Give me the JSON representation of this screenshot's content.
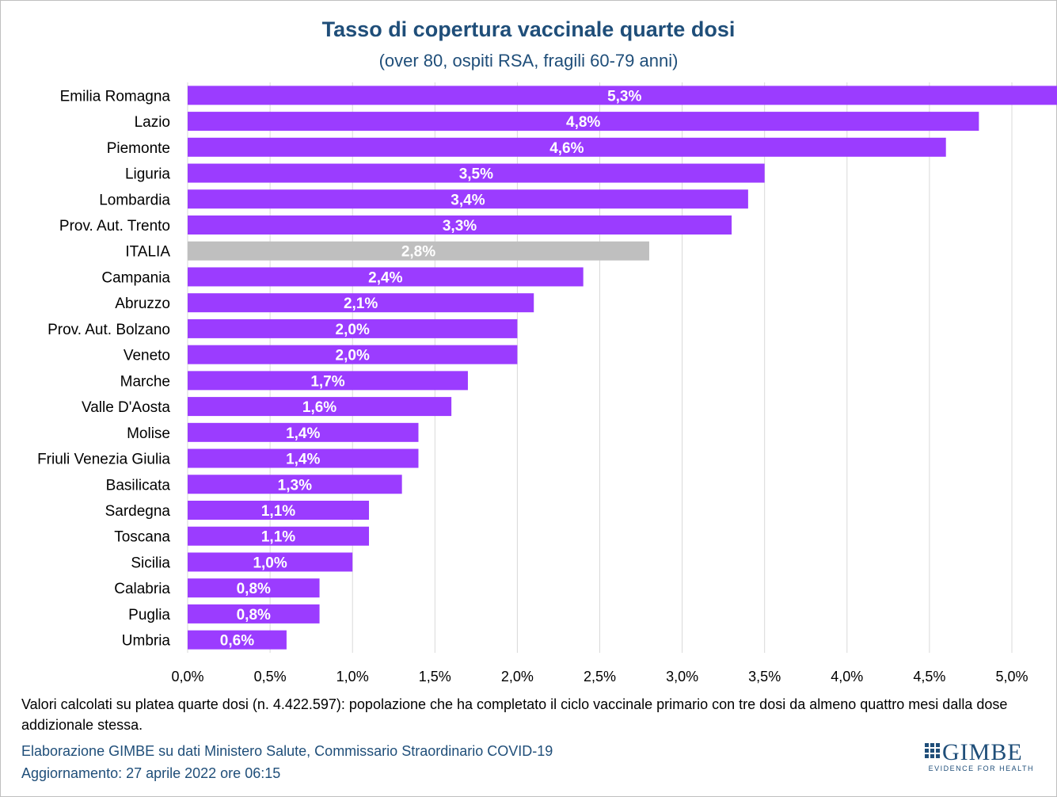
{
  "chart_data": {
    "type": "bar",
    "orientation": "horizontal",
    "title": "Tasso di copertura vaccinale quarte dosi",
    "subtitle": "(over 80, ospiti RSA, fragili 60-79 anni)",
    "categories": [
      "Emilia Romagna",
      "Lazio",
      "Piemonte",
      "Liguria",
      "Lombardia",
      "Prov. Aut. Trento",
      "ITALIA",
      "Campania",
      "Abruzzo",
      "Prov. Aut. Bolzano",
      "Veneto",
      "Marche",
      "Valle D'Aosta",
      "Molise",
      "Friuli Venezia Giulia",
      "Basilicata",
      "Sardegna",
      "Toscana",
      "Sicilia",
      "Calabria",
      "Puglia",
      "Umbria"
    ],
    "values": [
      5.3,
      4.8,
      4.6,
      3.5,
      3.4,
      3.3,
      2.8,
      2.4,
      2.1,
      2.0,
      2.0,
      1.7,
      1.6,
      1.4,
      1.4,
      1.3,
      1.1,
      1.1,
      1.0,
      0.8,
      0.8,
      0.6
    ],
    "value_labels": [
      "5,3%",
      "4,8%",
      "4,6%",
      "3,5%",
      "3,4%",
      "3,3%",
      "2,8%",
      "2,4%",
      "2,1%",
      "2,0%",
      "2,0%",
      "1,7%",
      "1,6%",
      "1,4%",
      "1,4%",
      "1,3%",
      "1,1%",
      "1,1%",
      "1,0%",
      "0,8%",
      "0,8%",
      "0,6%"
    ],
    "highlight_category": "ITALIA",
    "xlim": [
      0,
      5.0
    ],
    "x_ticks": [
      "0,0%",
      "0,5%",
      "1,0%",
      "1,5%",
      "2,0%",
      "2,5%",
      "3,0%",
      "3,5%",
      "4,0%",
      "4,5%",
      "5,0%"
    ],
    "grid": true,
    "colors": {
      "bar": "#9b3cff",
      "highlight": "#bfbfbf",
      "grid": "#d9d9d9",
      "label": "#ffffff"
    }
  },
  "footer": {
    "note": "Valori calcolati su platea quarte dosi (n. 4.422.597): popolazione che ha completato il ciclo vaccinale primario con tre dosi da almeno quattro mesi dalla dose addizionale stessa.",
    "source": "Elaborazione GIMBE su dati Ministero Salute, Commissario Straordinario COVID-19",
    "updated": "Aggiornamento: 27 aprile 2022 ore 06:15"
  },
  "logo": {
    "name": "GIMBE",
    "tagline": "EVIDENCE FOR HEALTH",
    "icon": "gimbe-grid-icon",
    "color": "#1f4e79"
  }
}
